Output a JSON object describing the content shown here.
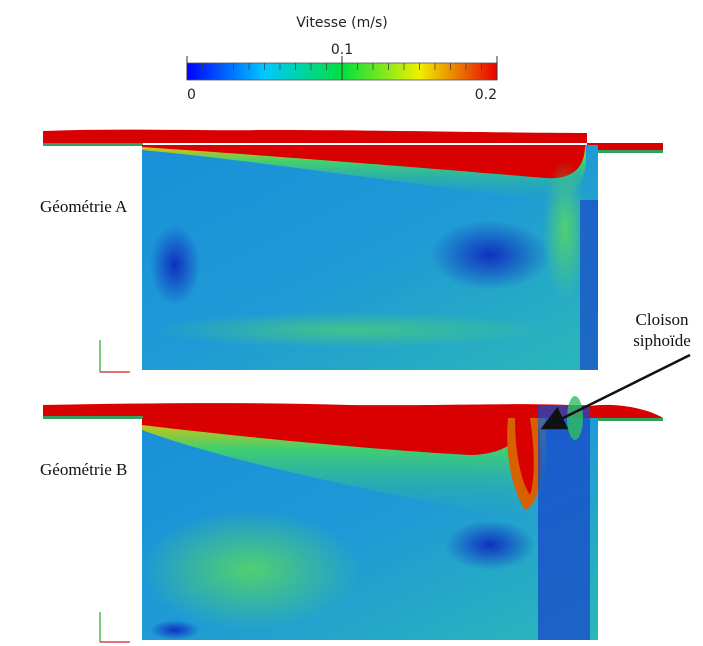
{
  "colorbar": {
    "title": "Vitesse (m/s)",
    "range": [
      0,
      0.2
    ],
    "ticks": [
      0,
      0.1,
      0.2
    ]
  },
  "panels": [
    {
      "label": "Géométrie A"
    },
    {
      "label": "Géométrie B"
    }
  ],
  "annotation": {
    "lines": [
      "Cloison",
      "siphoïde"
    ]
  }
}
